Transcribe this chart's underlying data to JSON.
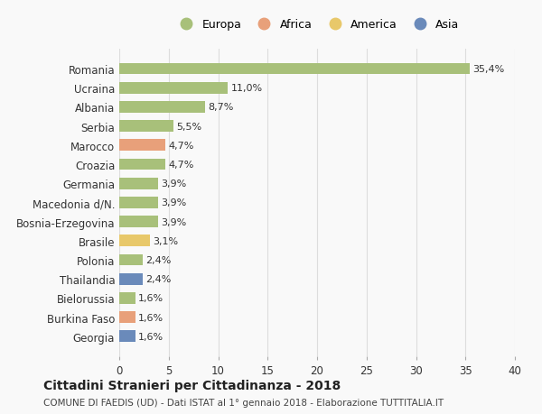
{
  "categories": [
    "Romania",
    "Ucraina",
    "Albania",
    "Serbia",
    "Marocco",
    "Croazia",
    "Germania",
    "Macedonia d/N.",
    "Bosnia-Erzegovina",
    "Brasile",
    "Polonia",
    "Thailandia",
    "Bielorussia",
    "Burkina Faso",
    "Georgia"
  ],
  "values": [
    35.4,
    11.0,
    8.7,
    5.5,
    4.7,
    4.7,
    3.9,
    3.9,
    3.9,
    3.1,
    2.4,
    2.4,
    1.6,
    1.6,
    1.6
  ],
  "labels": [
    "35,4%",
    "11,0%",
    "8,7%",
    "5,5%",
    "4,7%",
    "4,7%",
    "3,9%",
    "3,9%",
    "3,9%",
    "3,1%",
    "2,4%",
    "2,4%",
    "1,6%",
    "1,6%",
    "1,6%"
  ],
  "continents": [
    "Europa",
    "Europa",
    "Europa",
    "Europa",
    "Africa",
    "Europa",
    "Europa",
    "Europa",
    "Europa",
    "America",
    "Europa",
    "Asia",
    "Europa",
    "Africa",
    "Asia"
  ],
  "continent_colors": {
    "Europa": "#a8c07a",
    "Africa": "#e8a07a",
    "America": "#e8c86a",
    "Asia": "#6a8aba"
  },
  "legend_order": [
    "Europa",
    "Africa",
    "America",
    "Asia"
  ],
  "title": "Cittadini Stranieri per Cittadinanza - 2018",
  "subtitle": "COMUNE DI FAEDIS (UD) - Dati ISTAT al 1° gennaio 2018 - Elaborazione TUTTITALIA.IT",
  "xlim": [
    0,
    40
  ],
  "xticks": [
    0,
    5,
    10,
    15,
    20,
    25,
    30,
    35,
    40
  ],
  "background_color": "#f9f9f9",
  "bar_height": 0.6,
  "grid_color": "#dddddd"
}
